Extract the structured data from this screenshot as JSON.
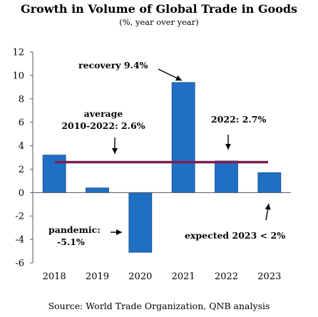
{
  "chart_data": {
    "type": "bar",
    "title": "Growth in Volume of Global Trade in Goods",
    "subtitle": "(%, year over year)",
    "source": "Source: World Trade Organization, QNB analysis",
    "categories": [
      "2018",
      "2019",
      "2020",
      "2021",
      "2022",
      "2023"
    ],
    "values": [
      3.2,
      0.4,
      -5.1,
      9.4,
      2.7,
      1.7
    ],
    "ylim": [
      -6,
      12
    ],
    "yticks": [
      -6,
      -4,
      -2,
      0,
      2,
      4,
      6,
      8,
      10,
      12
    ],
    "grid": false,
    "reference_line": {
      "value": 2.6,
      "color": "#7b1f4f"
    },
    "annotations": [
      {
        "lines": [
          "recovery 9.4%"
        ]
      },
      {
        "lines": [
          "average",
          "2010-2022: 2.6%"
        ]
      },
      {
        "lines": [
          "2022: 2.7%"
        ]
      },
      {
        "lines": [
          "pandemic:",
          "-5.1%"
        ]
      },
      {
        "lines": [
          "expected 2023 < 2%"
        ]
      }
    ],
    "colors": {
      "bar": "#1f6fc5",
      "bar_edge": "#15508f",
      "average_line": "#7b1f4f"
    }
  }
}
